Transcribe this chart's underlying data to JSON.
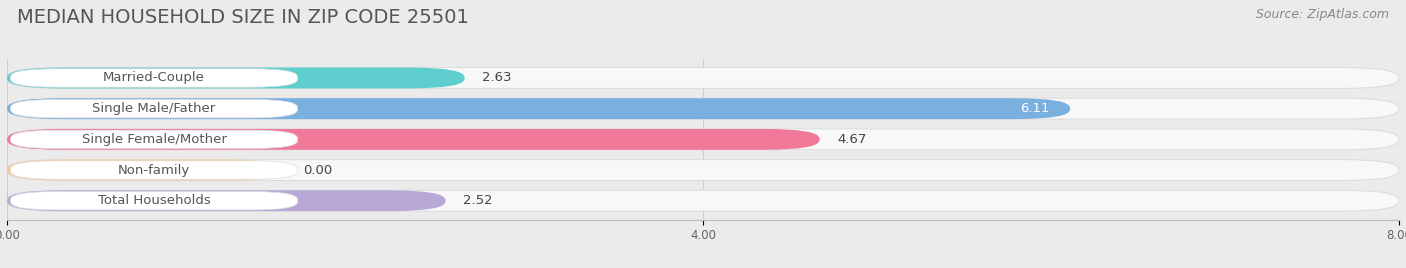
{
  "title": "MEDIAN HOUSEHOLD SIZE IN ZIP CODE 25501",
  "source": "Source: ZipAtlas.com",
  "categories": [
    "Married-Couple",
    "Single Male/Father",
    "Single Female/Mother",
    "Non-family",
    "Total Households"
  ],
  "values": [
    2.63,
    6.11,
    4.67,
    0.0,
    2.52
  ],
  "bar_colors": [
    "#5ecece",
    "#7ab0e0",
    "#f07898",
    "#f5c896",
    "#b8a8d8"
  ],
  "xlim": [
    0,
    8.0
  ],
  "xticks": [
    0.0,
    4.0,
    8.0
  ],
  "value_label_colors": [
    "#444444",
    "#ffffff",
    "#444444",
    "#444444",
    "#444444"
  ],
  "background_color": "#ebebeb",
  "bar_bg_color": "#f5f5f5",
  "title_fontsize": 14,
  "source_fontsize": 9,
  "label_fontsize": 9.5,
  "value_fontsize": 9.5
}
